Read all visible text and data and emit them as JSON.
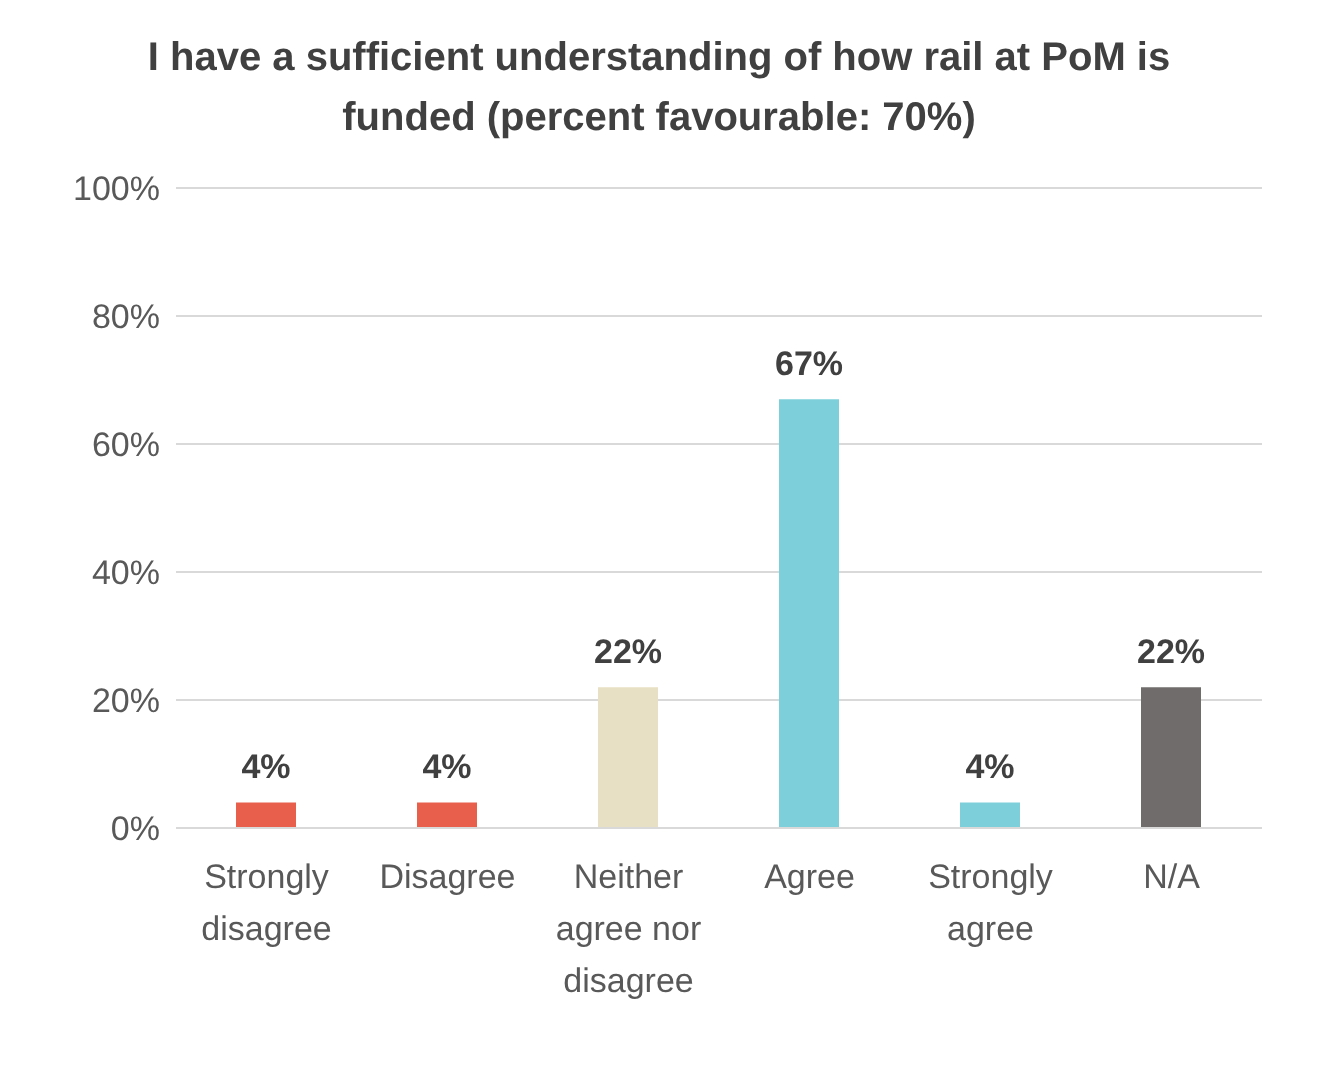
{
  "chart_data": {
    "type": "bar",
    "title": "I have a sufficient understanding of how rail at PoM is funded (percent favourable: 70%)",
    "categories": [
      "Strongly disagree",
      "Disagree",
      "Neither agree nor disagree",
      "Agree",
      "Strongly agree",
      "N/A"
    ],
    "values": [
      4,
      4,
      22,
      67,
      4,
      22
    ],
    "colors": [
      "#e8604c",
      "#e8604c",
      "#e8e0c4",
      "#7dd0da",
      "#7dd0da",
      "#716c6c"
    ],
    "value_labels": [
      "4%",
      "4%",
      "22%",
      "67%",
      "4%",
      "22%"
    ],
    "ylim": [
      0,
      100
    ],
    "yticks": [
      {
        "value": 0,
        "label": "0%"
      },
      {
        "value": 20,
        "label": "20%"
      },
      {
        "value": 40,
        "label": "40%"
      },
      {
        "value": 60,
        "label": "60%"
      },
      {
        "value": 80,
        "label": "80%"
      },
      {
        "value": 100,
        "label": "100%"
      }
    ],
    "grid": "y",
    "legend": false
  }
}
